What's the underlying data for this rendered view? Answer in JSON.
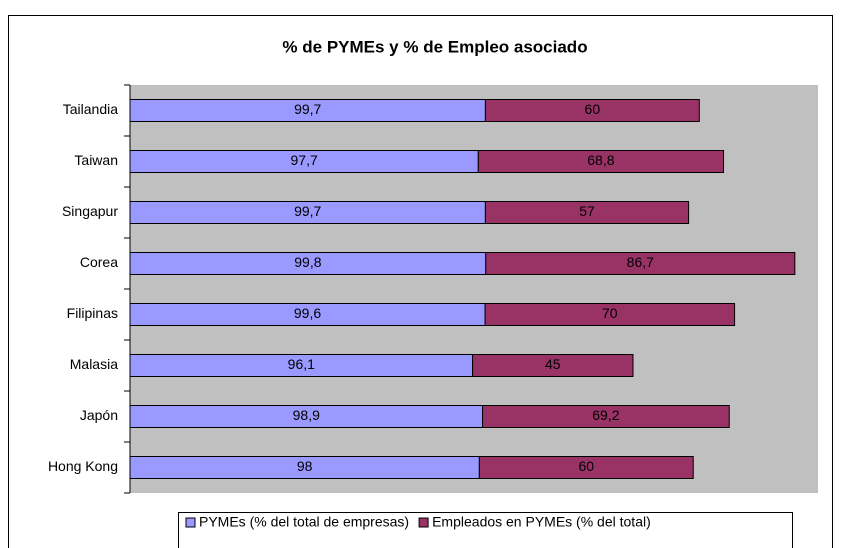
{
  "chart_data": {
    "type": "stacked_bar_horizontal",
    "title": "% de PYMEs y % de Empleo asociado",
    "categories": [
      "Tailandia",
      "Taiwan",
      "Singapur",
      "Corea",
      "Filipinas",
      "Malasia",
      "Japón",
      "Hong Kong"
    ],
    "series": [
      {
        "name": "PYMEs (% del total de empresas)",
        "color": "#9999ff",
        "values": [
          99.7,
          97.7,
          99.7,
          99.8,
          99.6,
          96.1,
          98.9,
          98
        ],
        "value_labels": [
          "99,7",
          "97,7",
          "99,7",
          "99,8",
          "99,6",
          "96,1",
          "98,9",
          "98"
        ]
      },
      {
        "name": "Empleados en PYMEs (% del total)",
        "color": "#993366",
        "values": [
          60,
          68.8,
          57,
          86.7,
          70,
          45,
          69.2,
          60
        ],
        "value_labels": [
          "60",
          "68,8",
          "57",
          "86,7",
          "70",
          "45",
          "69,2",
          "60"
        ]
      }
    ],
    "xlim": [
      0,
      193
    ],
    "plot_background": "#c0c0c0"
  }
}
